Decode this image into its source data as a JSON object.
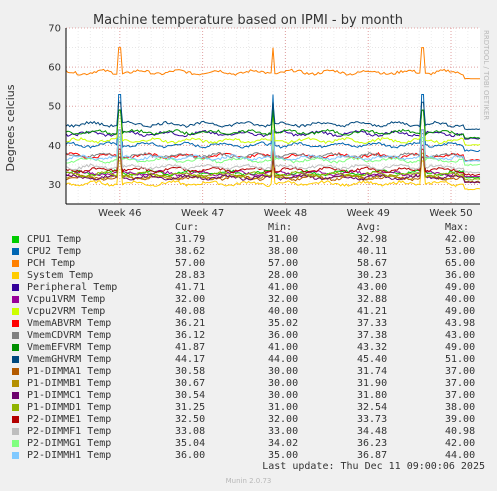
{
  "chart_data": {
    "type": "line",
    "title": "Machine temperature based on IPMI - by month",
    "ylabel": "Degrees celcius",
    "side_label": "RRDTOOL / TOBI OETIKER",
    "ylim": [
      25,
      70
    ],
    "yticks": [
      30,
      40,
      50,
      60,
      70
    ],
    "xticks": [
      "Week 46",
      "Week 47",
      "Week 48",
      "Week 49",
      "Week 50"
    ],
    "grid": true,
    "spikes": [
      0.13,
      0.5,
      0.86
    ],
    "series": [
      {
        "name": "CPU1 Temp",
        "color": "#00cc00",
        "cur": "31.79",
        "min": "31.00",
        "avg": "32.98",
        "max": "42.00"
      },
      {
        "name": "CPU2 Temp",
        "color": "#0066b3",
        "cur": "38.62",
        "min": "38.00",
        "avg": "40.11",
        "max": "53.00"
      },
      {
        "name": "PCH Temp",
        "color": "#ff8000",
        "cur": "57.00",
        "min": "57.00",
        "avg": "58.67",
        "max": "65.00"
      },
      {
        "name": "System Temp",
        "color": "#ffcc00",
        "cur": "28.83",
        "min": "28.00",
        "avg": "30.23",
        "max": "36.00"
      },
      {
        "name": "Peripheral Temp",
        "color": "#330099",
        "cur": "41.71",
        "min": "41.00",
        "avg": "43.00",
        "max": "49.00"
      },
      {
        "name": "Vcpu1VRM Temp",
        "color": "#990099",
        "cur": "32.00",
        "min": "32.00",
        "avg": "32.88",
        "max": "40.00"
      },
      {
        "name": "Vcpu2VRM Temp",
        "color": "#ccff00",
        "cur": "40.08",
        "min": "40.00",
        "avg": "41.21",
        "max": "49.00"
      },
      {
        "name": "VmemABVRM Temp",
        "color": "#ff0000",
        "cur": "36.21",
        "min": "35.02",
        "avg": "37.33",
        "max": "43.98"
      },
      {
        "name": "VmemCDVRM Temp",
        "color": "#808080",
        "cur": "36.12",
        "min": "36.00",
        "avg": "37.38",
        "max": "43.00"
      },
      {
        "name": "VmemEFVRM Temp",
        "color": "#008f00",
        "cur": "41.87",
        "min": "41.00",
        "avg": "43.32",
        "max": "49.00"
      },
      {
        "name": "VmemGHVRM Temp",
        "color": "#00487d",
        "cur": "44.17",
        "min": "44.00",
        "avg": "45.40",
        "max": "51.00"
      },
      {
        "name": "P1-DIMMA1 Temp",
        "color": "#b35a00",
        "cur": "30.58",
        "min": "30.00",
        "avg": "31.74",
        "max": "37.00"
      },
      {
        "name": "P1-DIMMB1 Temp",
        "color": "#b38f00",
        "cur": "30.67",
        "min": "30.00",
        "avg": "31.90",
        "max": "37.00"
      },
      {
        "name": "P1-DIMMC1 Temp",
        "color": "#6b006b",
        "cur": "30.54",
        "min": "30.00",
        "avg": "31.80",
        "max": "37.00"
      },
      {
        "name": "P1-DIMMD1 Temp",
        "color": "#8fb300",
        "cur": "31.25",
        "min": "31.00",
        "avg": "32.54",
        "max": "38.00"
      },
      {
        "name": "P2-DIMME1 Temp",
        "color": "#b30000",
        "cur": "32.50",
        "min": "32.00",
        "avg": "33.73",
        "max": "39.00"
      },
      {
        "name": "P2-DIMMF1 Temp",
        "color": "#bebebe",
        "cur": "33.08",
        "min": "33.00",
        "avg": "34.48",
        "max": "40.98"
      },
      {
        "name": "P2-DIMMG1 Temp",
        "color": "#80ff80",
        "cur": "35.04",
        "min": "34.02",
        "avg": "36.23",
        "max": "42.00"
      },
      {
        "name": "P2-DIMMH1 Temp",
        "color": "#80c9ff",
        "cur": "36.00",
        "min": "35.00",
        "avg": "36.87",
        "max": "44.00"
      }
    ]
  },
  "legend_headers": {
    "cur": "Cur:",
    "min": "Min:",
    "avg": "Avg:",
    "max": "Max:"
  },
  "footer": {
    "last_update": "Last update: Thu Dec 11 09:00:06 2025",
    "version": "Munin 2.0.73"
  }
}
